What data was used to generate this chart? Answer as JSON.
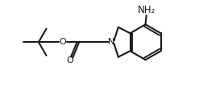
{
  "bg_color": "#ffffff",
  "line_color": "#1a1a1a",
  "line_width": 1.5,
  "text_color": "#1a1a1a",
  "nh2_label": "NH₂",
  "n_label": "N",
  "o_label": "O",
  "o2_label": "O"
}
